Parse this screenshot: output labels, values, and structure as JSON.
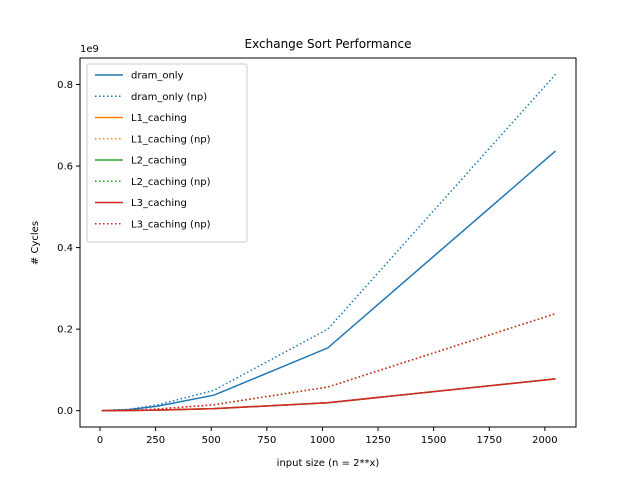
{
  "chart_data": {
    "type": "line",
    "title": "Exchange Sort Performance",
    "xlabel": "input size (n = 2**x)",
    "ylabel": "# Cycles",
    "y_offset_label": "1e9",
    "xlim": [
      -90,
      2140
    ],
    "ylim": [
      -0.04,
      0.865
    ],
    "xticks": [
      0,
      250,
      500,
      750,
      1000,
      1250,
      1500,
      1750,
      2000
    ],
    "xtick_labels": [
      "0",
      "250",
      "500",
      "750",
      "1000",
      "1250",
      "1500",
      "1750",
      "2000"
    ],
    "yticks": [
      0.0,
      0.2,
      0.4,
      0.6,
      0.8
    ],
    "ytick_labels": [
      "0.0",
      "0.2",
      "0.4",
      "0.6",
      "0.8"
    ],
    "grid": false,
    "legend": "top-left",
    "x": [
      8,
      16,
      32,
      64,
      128,
      256,
      512,
      1024,
      2048
    ],
    "series": [
      {
        "name": "dram_only",
        "color": "#1f77b4",
        "style": "solid",
        "values": [
          3e-05,
          0.0001,
          0.0004,
          0.0015,
          0.0025,
          0.011,
          0.038,
          0.154,
          0.637
        ]
      },
      {
        "name": "dram_only (np)",
        "color": "#1f77b4",
        "style": "dotted",
        "values": [
          4e-05,
          0.00013,
          0.0005,
          0.002,
          0.003,
          0.014,
          0.05,
          0.2,
          0.825
        ]
      },
      {
        "name": "L1_caching",
        "color": "#ff7f0e",
        "style": "solid",
        "values": [
          1e-05,
          3e-05,
          0.0001,
          0.0003,
          0.0005,
          0.0015,
          0.005,
          0.0195,
          0.078
        ]
      },
      {
        "name": "L1_caching (np)",
        "color": "#ff7f0e",
        "style": "dotted",
        "values": [
          1e-05,
          4e-05,
          0.00015,
          0.0006,
          0.0009,
          0.004,
          0.0145,
          0.058,
          0.238
        ]
      },
      {
        "name": "L2_caching",
        "color": "#2ca02c",
        "style": "solid",
        "values": [
          1e-05,
          3e-05,
          0.0001,
          0.0003,
          0.0005,
          0.0015,
          0.005,
          0.0195,
          0.078
        ]
      },
      {
        "name": "L2_caching (np)",
        "color": "#2ca02c",
        "style": "dotted",
        "values": [
          1e-05,
          4e-05,
          0.00015,
          0.0006,
          0.0009,
          0.004,
          0.0145,
          0.058,
          0.238
        ]
      },
      {
        "name": "L3_caching",
        "color": "#d62728",
        "style": "solid",
        "values": [
          1e-05,
          3e-05,
          0.0001,
          0.0003,
          0.0005,
          0.0015,
          0.005,
          0.0195,
          0.078
        ]
      },
      {
        "name": "L3_caching (np)",
        "color": "#d62728",
        "style": "dotted",
        "values": [
          1e-05,
          4e-05,
          0.00015,
          0.0006,
          0.0009,
          0.004,
          0.0145,
          0.058,
          0.238
        ]
      }
    ]
  }
}
